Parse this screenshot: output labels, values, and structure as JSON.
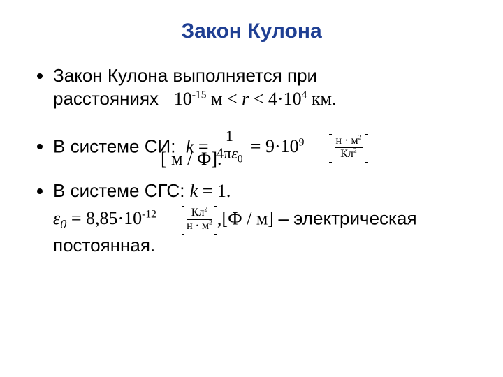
{
  "colors": {
    "title": "#1f3f93",
    "text": "#000000",
    "background": "#ffffff"
  },
  "title": "Закон Кулона",
  "bullet1": {
    "prefix": "Закон Кулона выполняется при расстояниях   ",
    "r_low": "10",
    "r_low_exp": "-15",
    "r_low_unit": " м ",
    "mid1": "< ",
    "r_var": "r",
    "mid2": " < 4·10",
    "r_high_exp": "4",
    "r_high_unit": " км."
  },
  "bullet2": {
    "prefix": "В системе СИ:  ",
    "k": "k",
    "eq1": "  = ",
    "frac_num": "1",
    "frac_den_4pi": "4π",
    "frac_den_eps": "ε",
    "frac_den_eps_sub": "0",
    "eq2": " =  9·10",
    "exp9": "9",
    "unit_num": "н · м",
    "unit_num_exp": "2",
    "unit_den": "Кл",
    "unit_den_exp": "2",
    "line2": "[ м / Ф]."
  },
  "bullet3": {
    "prefix": "В системе СГС: ",
    "k": "k",
    "rest": "  = 1."
  },
  "eps_line": {
    "eps": "ε",
    "eps_sub": "0",
    "eq": " =  8,85·10",
    "exp": "-12",
    "unit_num": "Кл",
    "unit_num_exp": "2",
    "unit_den": "н · м",
    "unit_den_exp": "2",
    "after_unit": ",[Ф / м]  ",
    "dash": "–",
    "tail": " электрическая постоянная."
  }
}
